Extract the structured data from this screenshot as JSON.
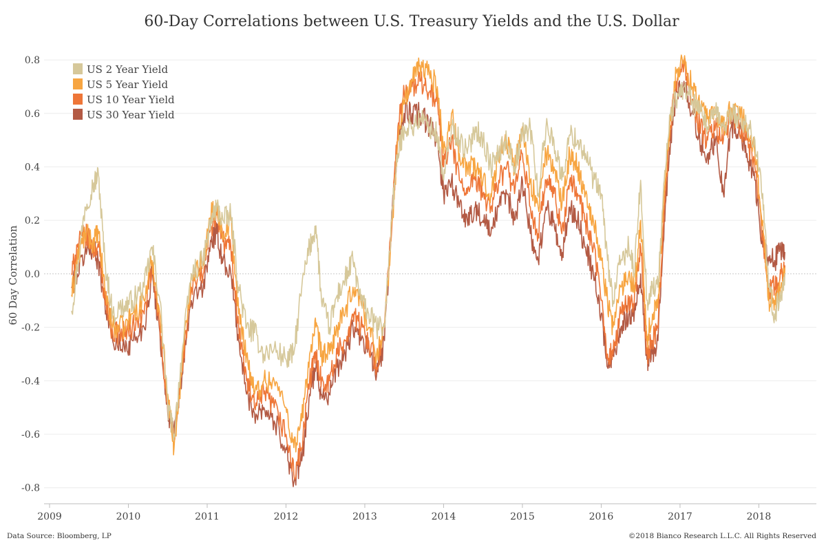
{
  "colors": {
    "us2": "#d6c89a",
    "us5": "#f7a541",
    "us10": "#ee7638",
    "us30": "#b35a44"
  },
  "footer": {
    "source": "Data Source: Bloomberg, LP",
    "copyright": "©2018 Bianco Research L.L.C. All Rights Reserved"
  },
  "chart_data": {
    "type": "line",
    "title": "60-Day Correlations between U.S. Treasury Yields and the U.S. Dollar",
    "xlabel": "",
    "ylabel": "60 Day Correlation",
    "xlim": [
      2008.93,
      2018.73
    ],
    "ylim": [
      -0.86,
      0.88
    ],
    "yticks": [
      0.8,
      0.6,
      0.4,
      0.2,
      0.0,
      -0.2,
      -0.4,
      -0.6,
      -0.8
    ],
    "ytick_labels": [
      "0.8",
      "0.6",
      "0.4",
      "0.2",
      "0.0",
      "-0.2",
      "-0.4",
      "-0.6",
      "-0.8"
    ],
    "xticks": [
      2009,
      2010,
      2011,
      2012,
      2013,
      2014,
      2015,
      2016,
      2017,
      2018
    ],
    "xtick_labels": [
      "2009",
      "2010",
      "2011",
      "2012",
      "2013",
      "2014",
      "2015",
      "2016",
      "2017",
      "2018"
    ],
    "grid": "horizontal",
    "legend_position": "top-left",
    "series": [
      {
        "name": "US 2 Year Yield",
        "color_key": "us2",
        "x": [
          2009.28,
          2009.35,
          2009.45,
          2009.55,
          2009.62,
          2009.7,
          2009.8,
          2009.95,
          2010.05,
          2010.2,
          2010.3,
          2010.4,
          2010.5,
          2010.58,
          2010.68,
          2010.8,
          2010.95,
          2011.05,
          2011.12,
          2011.2,
          2011.3,
          2011.4,
          2011.5,
          2011.6,
          2011.72,
          2011.85,
          2012.0,
          2012.1,
          2012.2,
          2012.3,
          2012.38,
          2012.45,
          2012.55,
          2012.65,
          2012.75,
          2012.85,
          2012.95,
          2013.05,
          2013.15,
          2013.25,
          2013.35,
          2013.42,
          2013.5,
          2013.6,
          2013.7,
          2013.82,
          2013.92,
          2014.0,
          2014.1,
          2014.2,
          2014.3,
          2014.4,
          2014.5,
          2014.6,
          2014.7,
          2014.8,
          2014.9,
          2015.0,
          2015.1,
          2015.2,
          2015.3,
          2015.4,
          2015.5,
          2015.6,
          2015.7,
          2015.8,
          2015.9,
          2016.0,
          2016.08,
          2016.15,
          2016.25,
          2016.35,
          2016.42,
          2016.5,
          2016.58,
          2016.65,
          2016.72,
          2016.8,
          2016.88,
          2016.95,
          2017.05,
          2017.15,
          2017.25,
          2017.35,
          2017.45,
          2017.55,
          2017.65,
          2017.75,
          2017.85,
          2017.95,
          2018.05,
          2018.12,
          2018.2,
          2018.28,
          2018.33
        ],
        "y": [
          -0.14,
          0.02,
          0.25,
          0.33,
          0.37,
          0.05,
          -0.15,
          -0.12,
          -0.1,
          -0.05,
          0.1,
          -0.1,
          -0.5,
          -0.6,
          -0.3,
          0.0,
          0.05,
          0.2,
          0.25,
          0.2,
          0.22,
          -0.05,
          -0.2,
          -0.22,
          -0.3,
          -0.28,
          -0.32,
          -0.3,
          -0.05,
          0.1,
          0.18,
          -0.1,
          -0.2,
          -0.08,
          -0.02,
          0.05,
          -0.1,
          -0.15,
          -0.2,
          -0.2,
          0.25,
          0.45,
          0.55,
          0.55,
          0.58,
          0.55,
          0.52,
          0.35,
          0.55,
          0.5,
          0.45,
          0.55,
          0.5,
          0.4,
          0.45,
          0.5,
          0.4,
          0.52,
          0.55,
          0.3,
          0.55,
          0.5,
          0.35,
          0.52,
          0.5,
          0.45,
          0.35,
          0.3,
          0.05,
          -0.1,
          0.05,
          0.1,
          0.0,
          0.35,
          -0.1,
          -0.05,
          -0.05,
          0.35,
          0.6,
          0.65,
          0.7,
          0.65,
          0.6,
          0.55,
          0.6,
          0.55,
          0.6,
          0.58,
          0.55,
          0.5,
          0.3,
          -0.05,
          -0.15,
          -0.08,
          0.0
        ]
      },
      {
        "name": "US 5 Year Yield",
        "color_key": "us5",
        "x": [
          2009.28,
          2009.35,
          2009.45,
          2009.55,
          2009.62,
          2009.7,
          2009.8,
          2009.95,
          2010.05,
          2010.2,
          2010.3,
          2010.4,
          2010.5,
          2010.58,
          2010.68,
          2010.8,
          2010.95,
          2011.05,
          2011.12,
          2011.2,
          2011.3,
          2011.4,
          2011.5,
          2011.6,
          2011.72,
          2011.85,
          2012.0,
          2012.1,
          2012.2,
          2012.3,
          2012.38,
          2012.45,
          2012.55,
          2012.65,
          2012.75,
          2012.85,
          2012.95,
          2013.05,
          2013.15,
          2013.25,
          2013.35,
          2013.42,
          2013.5,
          2013.6,
          2013.7,
          2013.82,
          2013.92,
          2014.0,
          2014.1,
          2014.2,
          2014.3,
          2014.4,
          2014.5,
          2014.6,
          2014.7,
          2014.8,
          2014.9,
          2015.0,
          2015.1,
          2015.2,
          2015.3,
          2015.4,
          2015.5,
          2015.6,
          2015.7,
          2015.8,
          2015.9,
          2016.0,
          2016.08,
          2016.15,
          2016.25,
          2016.35,
          2016.42,
          2016.5,
          2016.58,
          2016.65,
          2016.72,
          2016.8,
          2016.88,
          2016.95,
          2017.05,
          2017.15,
          2017.25,
          2017.35,
          2017.45,
          2017.55,
          2017.65,
          2017.75,
          2017.85,
          2017.95,
          2018.05,
          2018.12,
          2018.2,
          2018.28,
          2018.33
        ],
        "y": [
          -0.08,
          0.05,
          0.15,
          0.12,
          0.15,
          -0.05,
          -0.2,
          -0.2,
          -0.15,
          -0.1,
          0.05,
          -0.15,
          -0.45,
          -0.65,
          -0.35,
          0.0,
          0.05,
          0.22,
          0.25,
          0.15,
          0.2,
          -0.15,
          -0.3,
          -0.45,
          -0.4,
          -0.4,
          -0.5,
          -0.65,
          -0.55,
          -0.3,
          -0.2,
          -0.3,
          -0.3,
          -0.2,
          -0.15,
          -0.05,
          -0.1,
          -0.2,
          -0.3,
          -0.2,
          0.2,
          0.5,
          0.65,
          0.72,
          0.78,
          0.75,
          0.7,
          0.45,
          0.6,
          0.45,
          0.4,
          0.4,
          0.35,
          0.3,
          0.45,
          0.5,
          0.4,
          0.55,
          0.35,
          0.25,
          0.45,
          0.4,
          0.25,
          0.45,
          0.4,
          0.3,
          0.2,
          0.05,
          -0.1,
          -0.2,
          -0.05,
          0.0,
          -0.05,
          0.2,
          -0.25,
          -0.15,
          -0.1,
          0.3,
          0.6,
          0.75,
          0.8,
          0.7,
          0.62,
          0.58,
          0.6,
          0.55,
          0.62,
          0.6,
          0.55,
          0.45,
          0.2,
          -0.1,
          -0.1,
          -0.05,
          0.02
        ]
      },
      {
        "name": "US 10 Year Yield",
        "color_key": "us10",
        "x": [
          2009.28,
          2009.35,
          2009.45,
          2009.55,
          2009.62,
          2009.7,
          2009.8,
          2009.95,
          2010.05,
          2010.2,
          2010.3,
          2010.4,
          2010.5,
          2010.58,
          2010.68,
          2010.8,
          2010.95,
          2011.05,
          2011.12,
          2011.2,
          2011.3,
          2011.4,
          2011.5,
          2011.6,
          2011.72,
          2011.85,
          2012.0,
          2012.1,
          2012.2,
          2012.3,
          2012.38,
          2012.45,
          2012.55,
          2012.65,
          2012.75,
          2012.85,
          2012.95,
          2013.05,
          2013.15,
          2013.25,
          2013.35,
          2013.42,
          2013.5,
          2013.6,
          2013.7,
          2013.82,
          2013.92,
          2014.0,
          2014.1,
          2014.2,
          2014.3,
          2014.4,
          2014.5,
          2014.6,
          2014.7,
          2014.8,
          2014.9,
          2015.0,
          2015.1,
          2015.2,
          2015.3,
          2015.4,
          2015.5,
          2015.6,
          2015.7,
          2015.8,
          2015.9,
          2016.0,
          2016.08,
          2016.15,
          2016.25,
          2016.35,
          2016.42,
          2016.5,
          2016.58,
          2016.65,
          2016.72,
          2016.8,
          2016.88,
          2016.95,
          2017.05,
          2017.15,
          2017.25,
          2017.35,
          2017.45,
          2017.55,
          2017.65,
          2017.75,
          2017.85,
          2017.95,
          2018.05,
          2018.12,
          2018.2,
          2018.28,
          2018.33
        ],
        "y": [
          0.0,
          0.1,
          0.15,
          0.1,
          0.1,
          -0.08,
          -0.22,
          -0.22,
          -0.2,
          -0.15,
          0.02,
          -0.2,
          -0.5,
          -0.62,
          -0.35,
          -0.05,
          0.0,
          0.18,
          0.22,
          0.12,
          0.1,
          -0.2,
          -0.4,
          -0.5,
          -0.45,
          -0.5,
          -0.6,
          -0.75,
          -0.65,
          -0.4,
          -0.3,
          -0.4,
          -0.4,
          -0.3,
          -0.25,
          -0.15,
          -0.2,
          -0.25,
          -0.35,
          -0.2,
          0.22,
          0.55,
          0.68,
          0.7,
          0.72,
          0.68,
          0.65,
          0.4,
          0.5,
          0.35,
          0.3,
          0.35,
          0.3,
          0.25,
          0.35,
          0.4,
          0.3,
          0.45,
          0.25,
          0.15,
          0.35,
          0.3,
          0.15,
          0.35,
          0.3,
          0.2,
          0.1,
          -0.1,
          -0.3,
          -0.3,
          -0.15,
          -0.1,
          -0.1,
          0.1,
          -0.3,
          -0.25,
          -0.2,
          0.25,
          0.55,
          0.72,
          0.78,
          0.65,
          0.55,
          0.5,
          0.55,
          0.5,
          0.58,
          0.55,
          0.5,
          0.4,
          0.15,
          -0.05,
          -0.05,
          0.0,
          0.03
        ]
      },
      {
        "name": "US 30 Year Yield",
        "color_key": "us30",
        "x": [
          2009.28,
          2009.35,
          2009.45,
          2009.55,
          2009.62,
          2009.7,
          2009.8,
          2009.95,
          2010.05,
          2010.2,
          2010.3,
          2010.4,
          2010.5,
          2010.58,
          2010.68,
          2010.8,
          2010.95,
          2011.05,
          2011.12,
          2011.2,
          2011.3,
          2011.4,
          2011.5,
          2011.6,
          2011.72,
          2011.85,
          2012.0,
          2012.1,
          2012.2,
          2012.3,
          2012.38,
          2012.45,
          2012.55,
          2012.65,
          2012.75,
          2012.85,
          2012.95,
          2013.05,
          2013.15,
          2013.25,
          2013.35,
          2013.42,
          2013.5,
          2013.6,
          2013.7,
          2013.82,
          2013.92,
          2014.0,
          2014.1,
          2014.2,
          2014.3,
          2014.4,
          2014.5,
          2014.6,
          2014.7,
          2014.8,
          2014.9,
          2015.0,
          2015.1,
          2015.2,
          2015.3,
          2015.4,
          2015.5,
          2015.6,
          2015.7,
          2015.8,
          2015.9,
          2016.0,
          2016.08,
          2016.15,
          2016.25,
          2016.35,
          2016.42,
          2016.5,
          2016.58,
          2016.65,
          2016.72,
          2016.8,
          2016.88,
          2016.95,
          2017.05,
          2017.15,
          2017.25,
          2017.35,
          2017.45,
          2017.55,
          2017.65,
          2017.75,
          2017.85,
          2017.95,
          2018.05,
          2018.12,
          2018.2,
          2018.28,
          2018.33
        ],
        "y": [
          -0.05,
          0.0,
          0.08,
          0.1,
          0.05,
          -0.1,
          -0.25,
          -0.28,
          -0.25,
          -0.2,
          0.0,
          -0.22,
          -0.52,
          -0.6,
          -0.38,
          -0.1,
          -0.05,
          0.12,
          0.15,
          0.05,
          0.0,
          -0.25,
          -0.45,
          -0.52,
          -0.5,
          -0.55,
          -0.65,
          -0.78,
          -0.7,
          -0.45,
          -0.35,
          -0.45,
          -0.45,
          -0.35,
          -0.3,
          -0.2,
          -0.25,
          -0.28,
          -0.38,
          -0.25,
          0.25,
          0.5,
          0.6,
          0.6,
          0.6,
          0.55,
          0.5,
          0.3,
          0.35,
          0.25,
          0.2,
          0.25,
          0.2,
          0.15,
          0.25,
          0.3,
          0.2,
          0.35,
          0.15,
          0.05,
          0.25,
          0.2,
          0.05,
          0.25,
          0.2,
          0.1,
          0.0,
          -0.15,
          -0.35,
          -0.3,
          -0.2,
          -0.15,
          -0.15,
          0.0,
          -0.32,
          -0.3,
          -0.25,
          0.2,
          0.5,
          0.68,
          0.72,
          0.6,
          0.5,
          0.45,
          0.5,
          0.3,
          0.55,
          0.55,
          0.45,
          0.35,
          0.1,
          0.05,
          0.05,
          0.08,
          0.08
        ]
      }
    ]
  }
}
